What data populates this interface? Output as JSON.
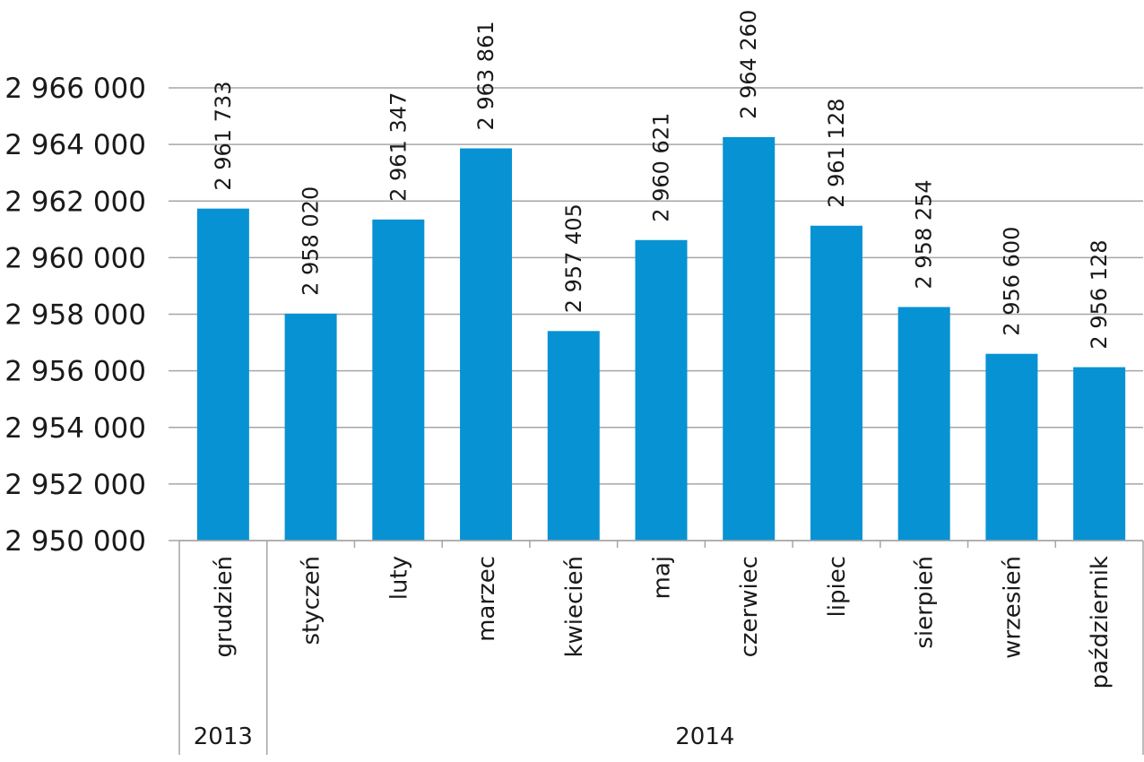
{
  "chart_data": {
    "type": "bar",
    "categories": [
      "grudzień",
      "styczeń",
      "luty",
      "marzec",
      "kwiecień",
      "maj",
      "czerwiec",
      "lipiec",
      "sierpień",
      "wrzesień",
      "październik"
    ],
    "values": [
      2961733,
      2958020,
      2961347,
      2963861,
      2957405,
      2960621,
      2964260,
      2961128,
      2958254,
      2956600,
      2956128
    ],
    "value_labels": [
      "2 961 733",
      "2 958 020",
      "2 961 347",
      "2 963 861",
      "2 957 405",
      "2 960 621",
      "2 964 260",
      "2 961 128",
      "2 958 254",
      "2 956 600",
      "2 956 128"
    ],
    "y_ticks": [
      2950000,
      2952000,
      2954000,
      2956000,
      2958000,
      2960000,
      2962000,
      2964000,
      2966000
    ],
    "y_tick_labels": [
      "2 950 000",
      "2 952 000",
      "2 954 000",
      "2 956 000",
      "2 958 000",
      "2 960 000",
      "2 962 000",
      "2 964 000",
      "2 966 000"
    ],
    "ylim": [
      2950000,
      2966000
    ],
    "year_groups": [
      {
        "label": "2013",
        "start": 0,
        "end": 0
      },
      {
        "label": "2014",
        "start": 1,
        "end": 10
      }
    ],
    "title": "",
    "xlabel": "",
    "ylabel": "",
    "grid": true,
    "bar_color": "#0792d3"
  }
}
